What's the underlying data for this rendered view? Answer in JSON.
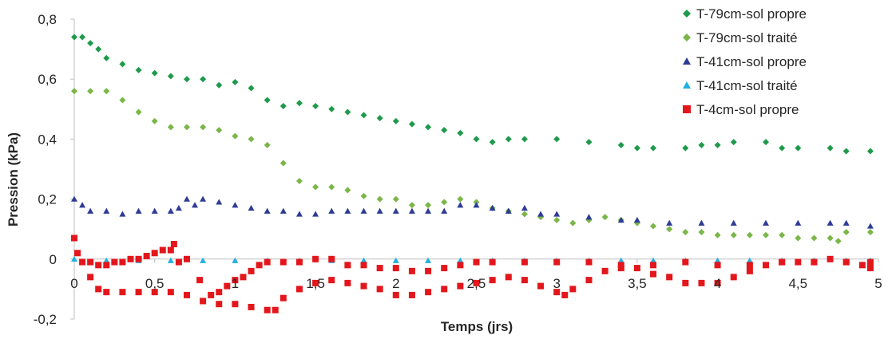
{
  "chart_data": {
    "type": "scatter",
    "title": "",
    "xlabel": "Temps (jrs)",
    "ylabel": "Pression (kPa)",
    "xlim": [
      0,
      5
    ],
    "ylim": [
      -0.2,
      0.8
    ],
    "x_ticks": [
      0,
      0.5,
      1,
      1.5,
      2,
      2.5,
      3,
      3.5,
      4,
      4.5,
      5
    ],
    "x_tick_labels": [
      "0",
      "0,5",
      "1",
      "1,5",
      "2",
      "2,5",
      "3",
      "3,5",
      "4",
      "4,5",
      "5"
    ],
    "y_ticks": [
      -0.2,
      0,
      0.2,
      0.4,
      0.6,
      0.8
    ],
    "y_tick_labels": [
      "-0,2",
      "0",
      "0,2",
      "0,4",
      "0,6",
      "0,8"
    ],
    "grid": false,
    "legend_position": "top-right",
    "series": [
      {
        "name": "T-79cm-sol propre",
        "marker": "diamond",
        "color": "#1e9a4a",
        "points": [
          [
            0,
            0.74
          ],
          [
            0.05,
            0.74
          ],
          [
            0.1,
            0.72
          ],
          [
            0.15,
            0.7
          ],
          [
            0.2,
            0.67
          ],
          [
            0.3,
            0.65
          ],
          [
            0.4,
            0.63
          ],
          [
            0.5,
            0.62
          ],
          [
            0.6,
            0.61
          ],
          [
            0.7,
            0.6
          ],
          [
            0.8,
            0.6
          ],
          [
            0.9,
            0.58
          ],
          [
            1.0,
            0.59
          ],
          [
            1.1,
            0.57
          ],
          [
            1.2,
            0.53
          ],
          [
            1.3,
            0.51
          ],
          [
            1.4,
            0.52
          ],
          [
            1.5,
            0.51
          ],
          [
            1.6,
            0.5
          ],
          [
            1.7,
            0.49
          ],
          [
            1.8,
            0.48
          ],
          [
            1.9,
            0.47
          ],
          [
            2.0,
            0.46
          ],
          [
            2.1,
            0.45
          ],
          [
            2.2,
            0.44
          ],
          [
            2.3,
            0.43
          ],
          [
            2.4,
            0.42
          ],
          [
            2.5,
            0.4
          ],
          [
            2.6,
            0.39
          ],
          [
            2.7,
            0.4
          ],
          [
            2.8,
            0.4
          ],
          [
            3.0,
            0.4
          ],
          [
            3.2,
            0.39
          ],
          [
            3.4,
            0.38
          ],
          [
            3.5,
            0.37
          ],
          [
            3.6,
            0.37
          ],
          [
            3.8,
            0.37
          ],
          [
            3.9,
            0.38
          ],
          [
            4.0,
            0.38
          ],
          [
            4.1,
            0.39
          ],
          [
            4.3,
            0.39
          ],
          [
            4.4,
            0.37
          ],
          [
            4.5,
            0.37
          ],
          [
            4.7,
            0.37
          ],
          [
            4.8,
            0.36
          ],
          [
            4.95,
            0.36
          ]
        ]
      },
      {
        "name": "T-79cm-sol traité",
        "marker": "diamond",
        "color": "#7ab648",
        "points": [
          [
            0,
            0.56
          ],
          [
            0.1,
            0.56
          ],
          [
            0.2,
            0.56
          ],
          [
            0.3,
            0.53
          ],
          [
            0.4,
            0.49
          ],
          [
            0.5,
            0.46
          ],
          [
            0.6,
            0.44
          ],
          [
            0.7,
            0.44
          ],
          [
            0.8,
            0.44
          ],
          [
            0.9,
            0.43
          ],
          [
            1.0,
            0.41
          ],
          [
            1.1,
            0.4
          ],
          [
            1.2,
            0.38
          ],
          [
            1.3,
            0.32
          ],
          [
            1.4,
            0.26
          ],
          [
            1.5,
            0.24
          ],
          [
            1.6,
            0.24
          ],
          [
            1.7,
            0.23
          ],
          [
            1.8,
            0.21
          ],
          [
            1.9,
            0.2
          ],
          [
            2.0,
            0.2
          ],
          [
            2.1,
            0.18
          ],
          [
            2.2,
            0.18
          ],
          [
            2.3,
            0.19
          ],
          [
            2.4,
            0.2
          ],
          [
            2.5,
            0.19
          ],
          [
            2.6,
            0.17
          ],
          [
            2.7,
            0.16
          ],
          [
            2.8,
            0.15
          ],
          [
            2.9,
            0.14
          ],
          [
            3.0,
            0.13
          ],
          [
            3.1,
            0.12
          ],
          [
            3.2,
            0.13
          ],
          [
            3.3,
            0.14
          ],
          [
            3.4,
            0.13
          ],
          [
            3.5,
            0.12
          ],
          [
            3.6,
            0.11
          ],
          [
            3.7,
            0.1
          ],
          [
            3.8,
            0.09
          ],
          [
            3.9,
            0.09
          ],
          [
            4.0,
            0.08
          ],
          [
            4.1,
            0.08
          ],
          [
            4.2,
            0.08
          ],
          [
            4.3,
            0.08
          ],
          [
            4.4,
            0.08
          ],
          [
            4.5,
            0.07
          ],
          [
            4.6,
            0.07
          ],
          [
            4.7,
            0.07
          ],
          [
            4.75,
            0.06
          ],
          [
            4.8,
            0.09
          ],
          [
            4.95,
            0.09
          ]
        ]
      },
      {
        "name": "T-41cm-sol propre",
        "marker": "triangle",
        "color": "#2e3c96",
        "points": [
          [
            0,
            0.2
          ],
          [
            0.05,
            0.18
          ],
          [
            0.1,
            0.16
          ],
          [
            0.2,
            0.16
          ],
          [
            0.3,
            0.15
          ],
          [
            0.4,
            0.16
          ],
          [
            0.5,
            0.16
          ],
          [
            0.6,
            0.16
          ],
          [
            0.65,
            0.17
          ],
          [
            0.7,
            0.2
          ],
          [
            0.75,
            0.18
          ],
          [
            0.8,
            0.2
          ],
          [
            0.9,
            0.19
          ],
          [
            1.0,
            0.18
          ],
          [
            1.1,
            0.17
          ],
          [
            1.2,
            0.16
          ],
          [
            1.3,
            0.16
          ],
          [
            1.4,
            0.15
          ],
          [
            1.5,
            0.15
          ],
          [
            1.6,
            0.16
          ],
          [
            1.7,
            0.16
          ],
          [
            1.8,
            0.16
          ],
          [
            1.9,
            0.16
          ],
          [
            2.0,
            0.16
          ],
          [
            2.1,
            0.16
          ],
          [
            2.2,
            0.16
          ],
          [
            2.3,
            0.16
          ],
          [
            2.4,
            0.18
          ],
          [
            2.5,
            0.18
          ],
          [
            2.6,
            0.17
          ],
          [
            2.7,
            0.16
          ],
          [
            2.8,
            0.17
          ],
          [
            2.9,
            0.15
          ],
          [
            3.0,
            0.15
          ],
          [
            3.2,
            0.14
          ],
          [
            3.4,
            0.13
          ],
          [
            3.5,
            0.13
          ],
          [
            3.7,
            0.12
          ],
          [
            3.9,
            0.12
          ],
          [
            4.1,
            0.12
          ],
          [
            4.3,
            0.12
          ],
          [
            4.5,
            0.12
          ],
          [
            4.7,
            0.12
          ],
          [
            4.8,
            0.12
          ],
          [
            4.95,
            0.11
          ]
        ]
      },
      {
        "name": "T-41cm-sol traité",
        "marker": "triangle",
        "color": "#22b0e0",
        "points": [
          [
            0,
            0.0
          ],
          [
            0.2,
            -0.005
          ],
          [
            0.4,
            -0.005
          ],
          [
            0.6,
            -0.005
          ],
          [
            0.8,
            -0.005
          ],
          [
            1.0,
            -0.005
          ],
          [
            1.2,
            -0.005
          ],
          [
            1.4,
            -0.005
          ],
          [
            1.6,
            -0.005
          ],
          [
            1.8,
            -0.005
          ],
          [
            2.0,
            -0.005
          ],
          [
            2.2,
            -0.005
          ],
          [
            2.4,
            -0.005
          ],
          [
            2.6,
            -0.005
          ],
          [
            2.8,
            -0.005
          ],
          [
            3.0,
            -0.005
          ],
          [
            3.2,
            -0.005
          ],
          [
            3.4,
            -0.005
          ],
          [
            3.6,
            -0.005
          ],
          [
            3.8,
            -0.005
          ],
          [
            4.0,
            -0.005
          ],
          [
            4.2,
            -0.005
          ],
          [
            4.4,
            -0.005
          ],
          [
            4.6,
            -0.005
          ],
          [
            4.8,
            -0.005
          ],
          [
            4.95,
            -0.005
          ]
        ]
      },
      {
        "name": "T-4cm-sol propre",
        "marker": "square",
        "color": "#e3161c",
        "points": [
          [
            0,
            0.07
          ],
          [
            0.02,
            0.02
          ],
          [
            0.05,
            -0.01
          ],
          [
            0.1,
            -0.06
          ],
          [
            0.15,
            -0.1
          ],
          [
            0.2,
            -0.11
          ],
          [
            0.3,
            -0.11
          ],
          [
            0.4,
            -0.11
          ],
          [
            0.5,
            -0.11
          ],
          [
            0.6,
            -0.11
          ],
          [
            0.7,
            -0.12
          ],
          [
            0.8,
            -0.14
          ],
          [
            0.9,
            -0.15
          ],
          [
            1.0,
            -0.15
          ],
          [
            1.1,
            -0.16
          ],
          [
            1.2,
            -0.17
          ],
          [
            1.25,
            -0.17
          ],
          [
            1.3,
            -0.13
          ],
          [
            1.4,
            -0.1
          ],
          [
            1.5,
            -0.08
          ],
          [
            1.6,
            -0.07
          ],
          [
            1.7,
            -0.08
          ],
          [
            1.8,
            -0.09
          ],
          [
            1.9,
            -0.1
          ],
          [
            2.0,
            -0.12
          ],
          [
            2.1,
            -0.12
          ],
          [
            2.2,
            -0.11
          ],
          [
            2.3,
            -0.1
          ],
          [
            2.4,
            -0.09
          ],
          [
            2.5,
            -0.08
          ],
          [
            2.6,
            -0.07
          ],
          [
            2.7,
            -0.06
          ],
          [
            2.8,
            -0.07
          ],
          [
            2.9,
            -0.09
          ],
          [
            3.0,
            -0.11
          ],
          [
            3.05,
            -0.12
          ],
          [
            3.1,
            -0.1
          ],
          [
            3.2,
            -0.07
          ],
          [
            3.3,
            -0.04
          ],
          [
            3.4,
            -0.03
          ],
          [
            3.5,
            -0.03
          ],
          [
            3.6,
            -0.05
          ],
          [
            3.7,
            -0.06
          ],
          [
            3.8,
            -0.08
          ],
          [
            3.9,
            -0.08
          ],
          [
            4.0,
            -0.08
          ],
          [
            4.1,
            -0.06
          ],
          [
            4.2,
            -0.04
          ],
          [
            4.3,
            -0.02
          ],
          [
            4.4,
            -0.01
          ],
          [
            4.5,
            -0.01
          ],
          [
            4.6,
            -0.01
          ],
          [
            4.7,
            0.0
          ],
          [
            4.8,
            -0.01
          ],
          [
            4.9,
            -0.02
          ],
          [
            4.95,
            -0.03
          ],
          [
            0.45,
            0.01
          ],
          [
            0.5,
            0.02
          ],
          [
            0.55,
            0.03
          ],
          [
            0.6,
            0.03
          ],
          [
            0.62,
            0.05
          ],
          [
            0.65,
            -0.01
          ],
          [
            0.7,
            0.0
          ],
          [
            0.78,
            -0.07
          ],
          [
            0.85,
            -0.12
          ],
          [
            0.9,
            -0.11
          ],
          [
            0.95,
            -0.09
          ],
          [
            1.0,
            -0.07
          ],
          [
            1.05,
            -0.06
          ],
          [
            1.1,
            -0.04
          ],
          [
            1.15,
            -0.02
          ],
          [
            1.2,
            -0.01
          ],
          [
            1.3,
            -0.01
          ],
          [
            1.4,
            -0.01
          ],
          [
            1.5,
            0.0
          ],
          [
            1.6,
            0.0
          ],
          [
            1.7,
            -0.02
          ],
          [
            1.8,
            -0.02
          ],
          [
            1.9,
            -0.03
          ],
          [
            2.0,
            -0.03
          ],
          [
            2.1,
            -0.04
          ],
          [
            2.2,
            -0.04
          ],
          [
            2.3,
            -0.03
          ],
          [
            2.4,
            -0.02
          ],
          [
            2.5,
            -0.01
          ],
          [
            2.6,
            -0.01
          ],
          [
            2.8,
            -0.01
          ],
          [
            3.0,
            -0.01
          ],
          [
            3.2,
            -0.01
          ],
          [
            3.4,
            -0.02
          ],
          [
            3.6,
            -0.02
          ],
          [
            3.8,
            -0.01
          ],
          [
            4.0,
            -0.02
          ],
          [
            4.2,
            -0.02
          ],
          [
            4.4,
            -0.01
          ],
          [
            4.6,
            -0.01
          ],
          [
            4.8,
            -0.01
          ],
          [
            4.95,
            -0.01
          ],
          [
            0.1,
            -0.01
          ],
          [
            0.15,
            -0.02
          ],
          [
            0.2,
            -0.02
          ],
          [
            0.25,
            -0.01
          ],
          [
            0.3,
            -0.01
          ],
          [
            0.35,
            0.0
          ],
          [
            0.4,
            0.0
          ]
        ]
      }
    ]
  }
}
